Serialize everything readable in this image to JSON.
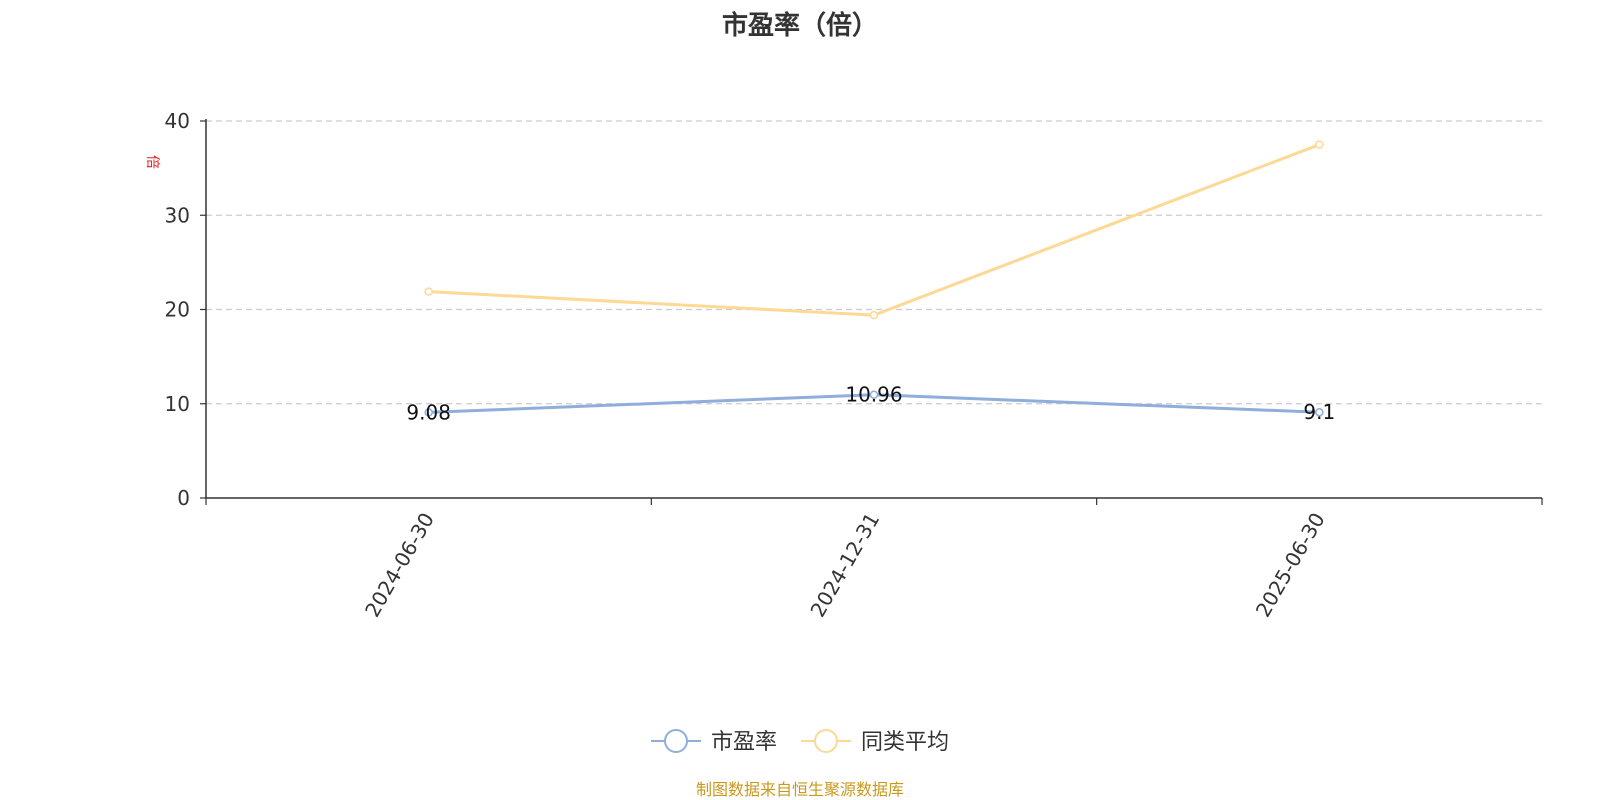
{
  "chart_data": {
    "type": "line",
    "title": "市盈率（倍）",
    "ylabel": "倍",
    "ylim": [
      0,
      40
    ],
    "yticks": [
      0,
      10,
      20,
      30,
      40
    ],
    "categories": [
      "2024-06-30",
      "2024-12-31",
      "2025-06-30"
    ],
    "grid": true,
    "legend_position": "bottom-center",
    "series": [
      {
        "name": "市盈率",
        "values": [
          9.08,
          10.96,
          9.1
        ],
        "labels": [
          "9.08",
          "10.96",
          "9.1"
        ],
        "color": "#8eaedb"
      },
      {
        "name": "同类平均",
        "values": [
          21.9,
          19.4,
          37.5
        ],
        "color": "#fcd995"
      }
    ]
  },
  "footer": {
    "source": "制图数据来自恒生聚源数据库",
    "color": "#c9981f"
  },
  "colors": {
    "ylabel": "#e02020",
    "axis": "#333333",
    "grid": "#cccccc"
  }
}
